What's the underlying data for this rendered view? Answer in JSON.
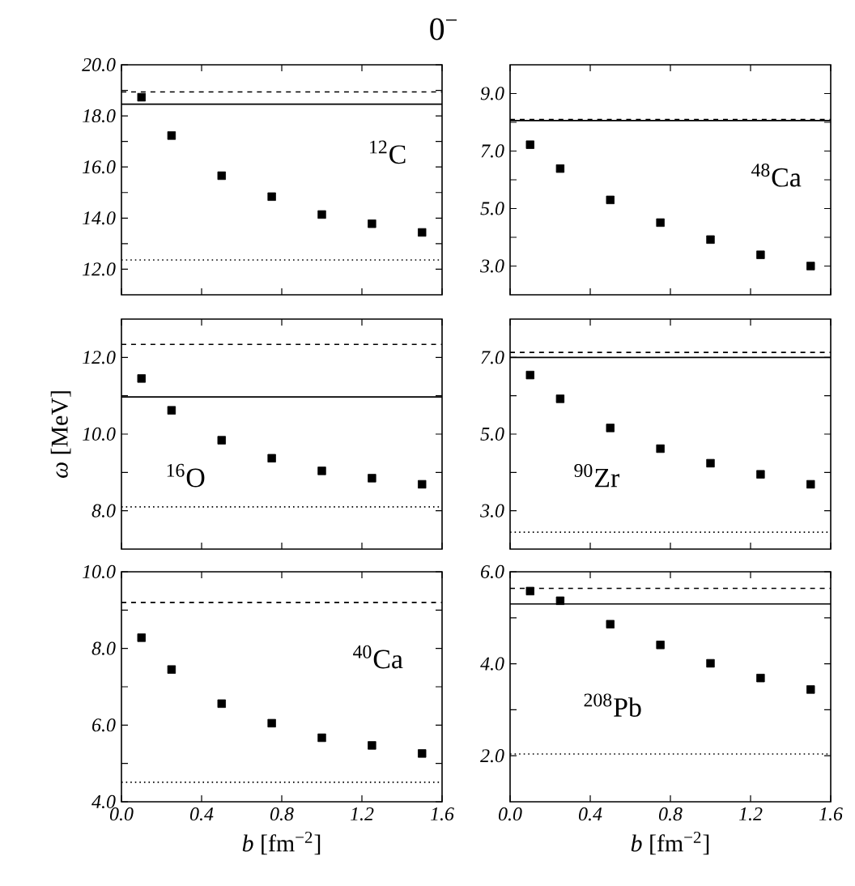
{
  "chart_data": [
    {
      "type": "scatter",
      "title": "0$^{−}$",
      "x": [
        0.1,
        0.25,
        0.5,
        0.75,
        1.0,
        1.25,
        1.5
      ],
      "values": [
        18.73,
        17.23,
        15.66,
        14.84,
        14.14,
        13.78,
        13.44
      ],
      "marker": "square",
      "xlim": [
        0,
        1.6
      ],
      "ylim": [
        11,
        20
      ],
      "xticks": [
        {
          "value": 0,
          "label": null
        },
        {
          "value": 0.4,
          "label": null
        },
        {
          "value": 0.8,
          "label": null
        },
        {
          "value": 1.2,
          "label": null
        },
        {
          "value": 1.6,
          "label": null
        }
      ],
      "yticks": [
        {
          "value": 12,
          "label": "12.0"
        },
        {
          "value": 13,
          "label": null
        },
        {
          "value": 14,
          "label": "14.0"
        },
        {
          "value": 15,
          "label": null
        },
        {
          "value": 16,
          "label": "16.0"
        },
        {
          "value": 17,
          "label": null
        },
        {
          "value": 18,
          "label": "18.0"
        },
        {
          "value": 19,
          "label": null
        },
        {
          "value": 20,
          "label": "20.0"
        }
      ],
      "ref_lines": [
        {
          "axis": "y",
          "value": 18.94,
          "line_style": "dashed"
        },
        {
          "axis": "y",
          "value": 18.46,
          "line_style": "solid"
        },
        {
          "axis": "y",
          "value": 12.36,
          "line_style": "dotted"
        }
      ],
      "annotations": [
        "$^{12}$C"
      ],
      "tick_labels": "y"
    },
    {
      "type": "scatter",
      "x": [
        0.1,
        0.25,
        0.5,
        0.75,
        1.0,
        1.25,
        1.5
      ],
      "values": [
        7.22,
        6.39,
        5.3,
        4.51,
        3.92,
        3.39,
        3.0
      ],
      "marker": "square",
      "xlim": [
        0,
        1.6
      ],
      "ylim": [
        2,
        10
      ],
      "xticks": [
        {
          "value": 0,
          "label": null
        },
        {
          "value": 0.4,
          "label": null
        },
        {
          "value": 0.8,
          "label": null
        },
        {
          "value": 1.2,
          "label": null
        },
        {
          "value": 1.6,
          "label": null
        }
      ],
      "yticks": [
        {
          "value": 3,
          "label": "3.0"
        },
        {
          "value": 4,
          "label": null
        },
        {
          "value": 5,
          "label": "5.0"
        },
        {
          "value": 6,
          "label": null
        },
        {
          "value": 7,
          "label": "7.0"
        },
        {
          "value": 8,
          "label": null
        },
        {
          "value": 9,
          "label": "9.0"
        }
      ],
      "ref_lines": [
        {
          "axis": "y",
          "value": 8.1,
          "line_style": "dashed"
        },
        {
          "axis": "y",
          "value": 8.06,
          "line_style": "solid"
        }
      ],
      "annotations": [
        "$^{48}$Ca"
      ],
      "tick_labels": "y"
    },
    {
      "type": "scatter",
      "ylabel": "*ω* [MeV]",
      "x": [
        0.1,
        0.25,
        0.5,
        0.75,
        1.0,
        1.25,
        1.5
      ],
      "values": [
        11.45,
        10.62,
        9.84,
        9.37,
        9.04,
        8.85,
        8.69
      ],
      "marker": "square",
      "xlim": [
        0,
        1.6
      ],
      "ylim": [
        7,
        13
      ],
      "xticks": [
        {
          "value": 0,
          "label": null
        },
        {
          "value": 0.4,
          "label": null
        },
        {
          "value": 0.8,
          "label": null
        },
        {
          "value": 1.2,
          "label": null
        },
        {
          "value": 1.6,
          "label": null
        }
      ],
      "yticks": [
        {
          "value": 8,
          "label": "8.0"
        },
        {
          "value": 9,
          "label": null
        },
        {
          "value": 10,
          "label": "10.0"
        },
        {
          "value": 11,
          "label": null
        },
        {
          "value": 12,
          "label": "12.0"
        }
      ],
      "ref_lines": [
        {
          "axis": "y",
          "value": 12.34,
          "line_style": "dashed"
        },
        {
          "axis": "y",
          "value": 10.97,
          "line_style": "solid"
        },
        {
          "axis": "y",
          "value": 8.1,
          "line_style": "dotted"
        }
      ],
      "annotations": [
        "$^{16}$O"
      ],
      "tick_labels": "y"
    },
    {
      "type": "scatter",
      "x": [
        0.1,
        0.25,
        0.5,
        0.75,
        1.0,
        1.25,
        1.5
      ],
      "values": [
        6.54,
        5.92,
        5.16,
        4.62,
        4.24,
        3.95,
        3.69
      ],
      "marker": "square",
      "xlim": [
        0,
        1.6
      ],
      "ylim": [
        2,
        8
      ],
      "xticks": [
        {
          "value": 0,
          "label": null
        },
        {
          "value": 0.4,
          "label": null
        },
        {
          "value": 0.8,
          "label": null
        },
        {
          "value": 1.2,
          "label": null
        },
        {
          "value": 1.6,
          "label": null
        }
      ],
      "yticks": [
        {
          "value": 3,
          "label": "3.0"
        },
        {
          "value": 4,
          "label": null
        },
        {
          "value": 5,
          "label": "5.0"
        },
        {
          "value": 6,
          "label": null
        },
        {
          "value": 7,
          "label": "7.0"
        }
      ],
      "ref_lines": [
        {
          "axis": "y",
          "value": 7.13,
          "line_style": "dashed"
        },
        {
          "axis": "y",
          "value": 7.0,
          "line_style": "solid"
        },
        {
          "axis": "y",
          "value": 2.44,
          "line_style": "dotted"
        }
      ],
      "annotations": [
        "$^{90}$Zr"
      ],
      "tick_labels": "y"
    },
    {
      "type": "scatter",
      "xlabel": "*b* [fm$^{−2}$]",
      "x": [
        0.1,
        0.25,
        0.5,
        0.75,
        1.0,
        1.25,
        1.5
      ],
      "values": [
        8.28,
        7.45,
        6.56,
        6.05,
        5.67,
        5.47,
        5.26
      ],
      "marker": "square",
      "xlim": [
        0,
        1.6
      ],
      "ylim": [
        4,
        10
      ],
      "xticks": [
        {
          "value": 0,
          "label": "0.0"
        },
        {
          "value": 0.4,
          "label": "0.4"
        },
        {
          "value": 0.8,
          "label": "0.8"
        },
        {
          "value": 1.2,
          "label": "1.2"
        },
        {
          "value": 1.6,
          "label": "1.6"
        }
      ],
      "yticks": [
        {
          "value": 4,
          "label": "4.0"
        },
        {
          "value": 5,
          "label": null
        },
        {
          "value": 6,
          "label": "6.0"
        },
        {
          "value": 7,
          "label": null
        },
        {
          "value": 8,
          "label": "8.0"
        },
        {
          "value": 9,
          "label": null
        },
        {
          "value": 10,
          "label": "10.0"
        }
      ],
      "ref_lines": [
        {
          "axis": "y",
          "value": 9.2,
          "line_style": "dashed"
        },
        {
          "axis": "y",
          "value": 4.51,
          "line_style": "dotted"
        }
      ],
      "annotations": [
        "$^{40}$Ca"
      ]
    },
    {
      "type": "scatter",
      "xlabel": "*b* [fm$^{−2}$]",
      "x": [
        0.1,
        0.25,
        0.5,
        0.75,
        1.0,
        1.25,
        1.5
      ],
      "values": [
        5.58,
        5.37,
        4.86,
        4.41,
        4.01,
        3.69,
        3.44
      ],
      "marker": "square",
      "xlim": [
        0,
        1.6
      ],
      "ylim": [
        1,
        6
      ],
      "xticks": [
        {
          "value": 0,
          "label": "0.0"
        },
        {
          "value": 0.4,
          "label": "0.4"
        },
        {
          "value": 0.8,
          "label": "0.8"
        },
        {
          "value": 1.2,
          "label": "1.2"
        },
        {
          "value": 1.6,
          "label": "1.6"
        }
      ],
      "yticks": [
        {
          "value": 2,
          "label": "2.0"
        },
        {
          "value": 3,
          "label": null
        },
        {
          "value": 4,
          "label": "4.0"
        },
        {
          "value": 5,
          "label": null
        },
        {
          "value": 6,
          "label": "6.0"
        }
      ],
      "ref_lines": [
        {
          "axis": "y",
          "value": 5.64,
          "line_style": "dashed"
        },
        {
          "axis": "y",
          "value": 5.3,
          "line_style": "solid"
        },
        {
          "axis": "y",
          "value": 2.04,
          "line_style": "dotted"
        }
      ],
      "annotations": [
        "$^{208}$Pb"
      ]
    }
  ]
}
